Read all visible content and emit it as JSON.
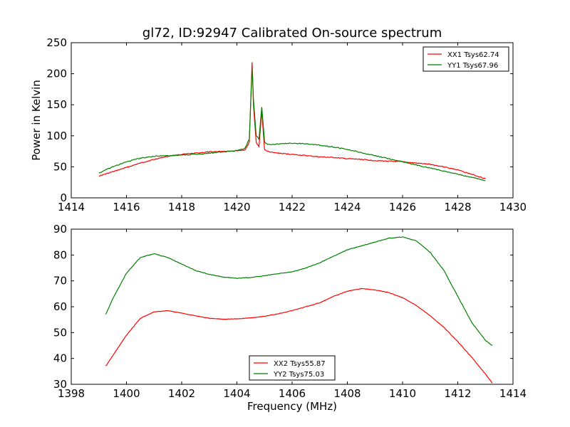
{
  "chart_data": [
    {
      "type": "line",
      "title": "gl72, ID:92947 Calibrated On-source spectrum",
      "xlabel": "",
      "ylabel": "Power in Kelvin",
      "xlim": [
        1414,
        1430
      ],
      "ylim": [
        0,
        250
      ],
      "xticks": [
        "1414",
        "1416",
        "1418",
        "1420",
        "1422",
        "1424",
        "1426",
        "1428",
        "1430"
      ],
      "yticks": [
        "0",
        "50",
        "100",
        "150",
        "200",
        "250"
      ],
      "legend": "top-right",
      "series": [
        {
          "name": "XX1 Tsys62.74",
          "color": "#ff0000",
          "x": [
            1415.0,
            1415.5,
            1416.0,
            1416.5,
            1417.0,
            1417.5,
            1418.0,
            1418.5,
            1419.0,
            1419.5,
            1420.0,
            1420.3,
            1420.45,
            1420.55,
            1420.6,
            1420.7,
            1420.8,
            1420.9,
            1421.0,
            1421.1,
            1421.3,
            1421.5,
            1422.0,
            1422.5,
            1423.0,
            1423.5,
            1424.0,
            1424.5,
            1425.0,
            1425.5,
            1426.0,
            1426.5,
            1427.0,
            1427.5,
            1428.0,
            1428.5,
            1429.0
          ],
          "y": [
            35,
            42,
            49,
            56,
            62,
            67,
            70,
            72,
            74,
            75,
            76,
            77,
            90,
            218,
            150,
            90,
            82,
            140,
            78,
            75,
            73,
            72,
            70,
            68,
            66,
            65,
            63,
            62,
            60,
            59,
            58,
            56,
            54,
            50,
            45,
            38,
            31
          ]
        },
        {
          "name": "YY1 Tsys67.96",
          "color": "#008000",
          "x": [
            1415.0,
            1415.5,
            1416.0,
            1416.5,
            1417.0,
            1417.5,
            1418.0,
            1418.5,
            1419.0,
            1419.5,
            1420.0,
            1420.3,
            1420.45,
            1420.55,
            1420.6,
            1420.7,
            1420.8,
            1420.9,
            1421.0,
            1421.1,
            1421.3,
            1421.5,
            1422.0,
            1422.5,
            1423.0,
            1423.5,
            1424.0,
            1424.5,
            1425.0,
            1425.5,
            1426.0,
            1426.5,
            1427.0,
            1427.5,
            1428.0,
            1428.5,
            1429.0
          ],
          "y": [
            40,
            50,
            58,
            64,
            67,
            68,
            69,
            70,
            72,
            74,
            76,
            80,
            95,
            210,
            160,
            100,
            95,
            147,
            90,
            86,
            86,
            87,
            88,
            87,
            85,
            82,
            78,
            73,
            68,
            63,
            58,
            53,
            48,
            43,
            38,
            33,
            28
          ]
        }
      ]
    },
    {
      "type": "line",
      "title": "",
      "xlabel": "Frequency (MHz)",
      "ylabel": "",
      "xlim": [
        1398,
        1414
      ],
      "ylim": [
        30,
        90
      ],
      "xticks": [
        "1398",
        "1400",
        "1402",
        "1404",
        "1406",
        "1408",
        "1410",
        "1412",
        "1414"
      ],
      "yticks": [
        "30",
        "40",
        "50",
        "60",
        "70",
        "80",
        "90"
      ],
      "legend": "lower-center",
      "series": [
        {
          "name": "XX2 Tsys55.87",
          "color": "#ff0000",
          "x": [
            1399.25,
            1399.5,
            1400.0,
            1400.5,
            1401.0,
            1401.5,
            1402.0,
            1402.5,
            1403.0,
            1403.5,
            1404.0,
            1404.5,
            1405.0,
            1405.5,
            1406.0,
            1406.5,
            1407.0,
            1407.5,
            1408.0,
            1408.5,
            1409.0,
            1409.5,
            1410.0,
            1410.5,
            1411.0,
            1411.5,
            1412.0,
            1412.5,
            1413.0,
            1413.25
          ],
          "y": [
            37,
            41,
            49,
            55.5,
            58,
            58.5,
            57.5,
            56.5,
            55.5,
            55.2,
            55.3,
            55.7,
            56.3,
            57.3,
            58.5,
            60,
            61.5,
            64,
            66,
            67,
            66.5,
            65.5,
            63.5,
            60.5,
            56.5,
            52,
            46.5,
            40.5,
            34,
            30.5
          ]
        },
        {
          "name": "YY2 Tsys75.03",
          "color": "#008000",
          "x": [
            1399.25,
            1399.5,
            1400.0,
            1400.5,
            1401.0,
            1401.5,
            1402.0,
            1402.5,
            1403.0,
            1403.5,
            1404.0,
            1404.5,
            1405.0,
            1405.5,
            1406.0,
            1406.5,
            1407.0,
            1407.5,
            1408.0,
            1408.5,
            1409.0,
            1409.5,
            1410.0,
            1410.5,
            1411.0,
            1411.5,
            1412.0,
            1412.5,
            1413.0,
            1413.25
          ],
          "y": [
            57,
            63,
            73,
            79,
            80.5,
            79,
            76.5,
            74,
            72.5,
            71.5,
            71,
            71.3,
            72,
            72.8,
            73.5,
            75,
            77,
            79.5,
            82,
            83.5,
            85,
            86.5,
            87,
            85.5,
            81,
            74,
            64,
            54,
            47,
            45
          ]
        }
      ]
    }
  ]
}
